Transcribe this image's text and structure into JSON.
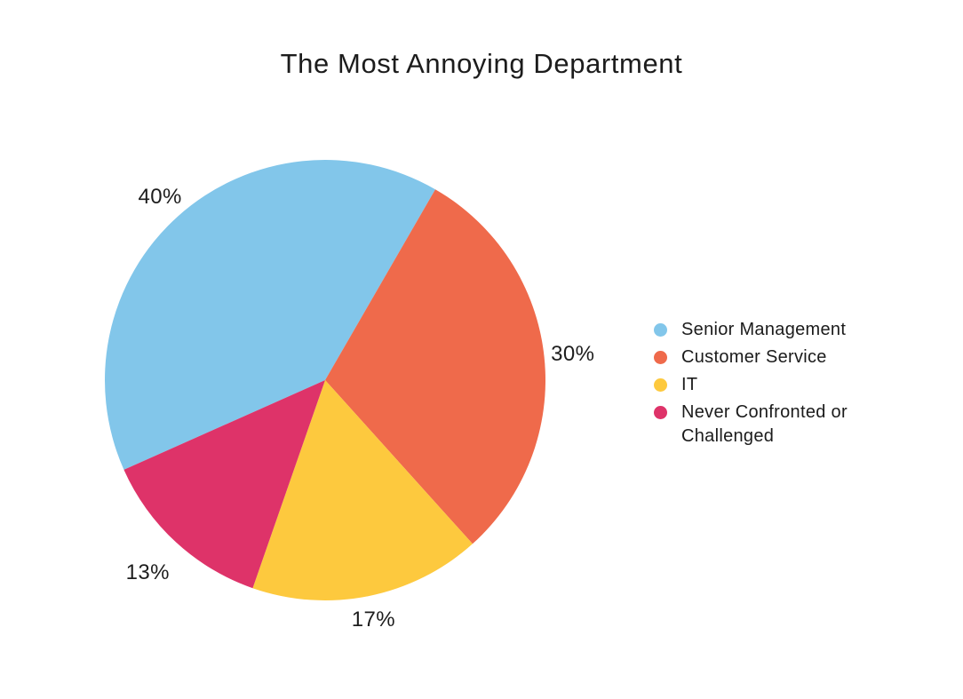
{
  "title": "The Most Annoying Department",
  "text_color": "#1d1d1d",
  "background": "#ffffff",
  "chart_data": {
    "type": "pie",
    "title": "The Most Annoying Department",
    "direction": "clockwise",
    "start_angle_deg_from_top": -114,
    "legend_position": "right",
    "labels_outside": true,
    "slices": [
      {
        "label": "Senior Management",
        "value": 40,
        "display": "40%",
        "color": "#82C6EA"
      },
      {
        "label": "Customer Service",
        "value": 30,
        "display": "30%",
        "color": "#EF6A4B"
      },
      {
        "label": "IT",
        "value": 17,
        "display": "17%",
        "color": "#FDC93E"
      },
      {
        "label": "Never Confronted or Challenged",
        "value": 13,
        "display": "13%",
        "color": "#DE3369"
      }
    ]
  }
}
